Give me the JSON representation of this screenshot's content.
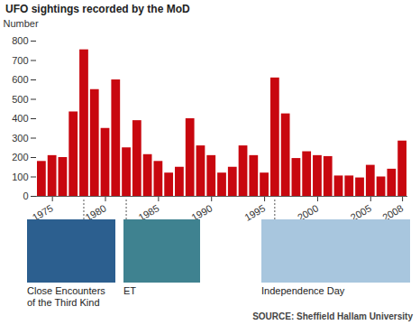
{
  "chart_data": {
    "type": "bar",
    "title": "UFO sightings recorded by the MoD",
    "y_label": "Number",
    "source": "SOURCE: Sheffield Hallam University",
    "x": [
      1974,
      1975,
      1976,
      1977,
      1978,
      1979,
      1980,
      1981,
      1982,
      1983,
      1984,
      1985,
      1986,
      1987,
      1988,
      1989,
      1990,
      1991,
      1992,
      1993,
      1994,
      1995,
      1996,
      1997,
      1998,
      1999,
      2000,
      2001,
      2002,
      2003,
      2004,
      2005,
      2006,
      2007,
      2008
    ],
    "values": [
      180,
      210,
      200,
      435,
      755,
      550,
      350,
      600,
      250,
      390,
      215,
      180,
      120,
      150,
      400,
      260,
      210,
      120,
      150,
      260,
      210,
      120,
      610,
      425,
      195,
      230,
      210,
      205,
      105,
      105,
      95,
      160,
      100,
      140,
      285
    ],
    "color": "#c8070f",
    "xlim": [
      1973.5,
      2008.5
    ],
    "xticks": [
      1975,
      1980,
      1985,
      1990,
      1995,
      2000,
      2005,
      2008
    ],
    "ylim": [
      0,
      800
    ],
    "yticks": [
      0,
      100,
      200,
      300,
      400,
      500,
      600,
      700,
      800
    ],
    "grid": false,
    "annotations": [
      {
        "x": 1978,
        "text": "Close Encounters of the Third Kind"
      },
      {
        "x": 1982,
        "text": "ET"
      },
      {
        "x": 1996,
        "text": "Independence Day"
      }
    ]
  }
}
